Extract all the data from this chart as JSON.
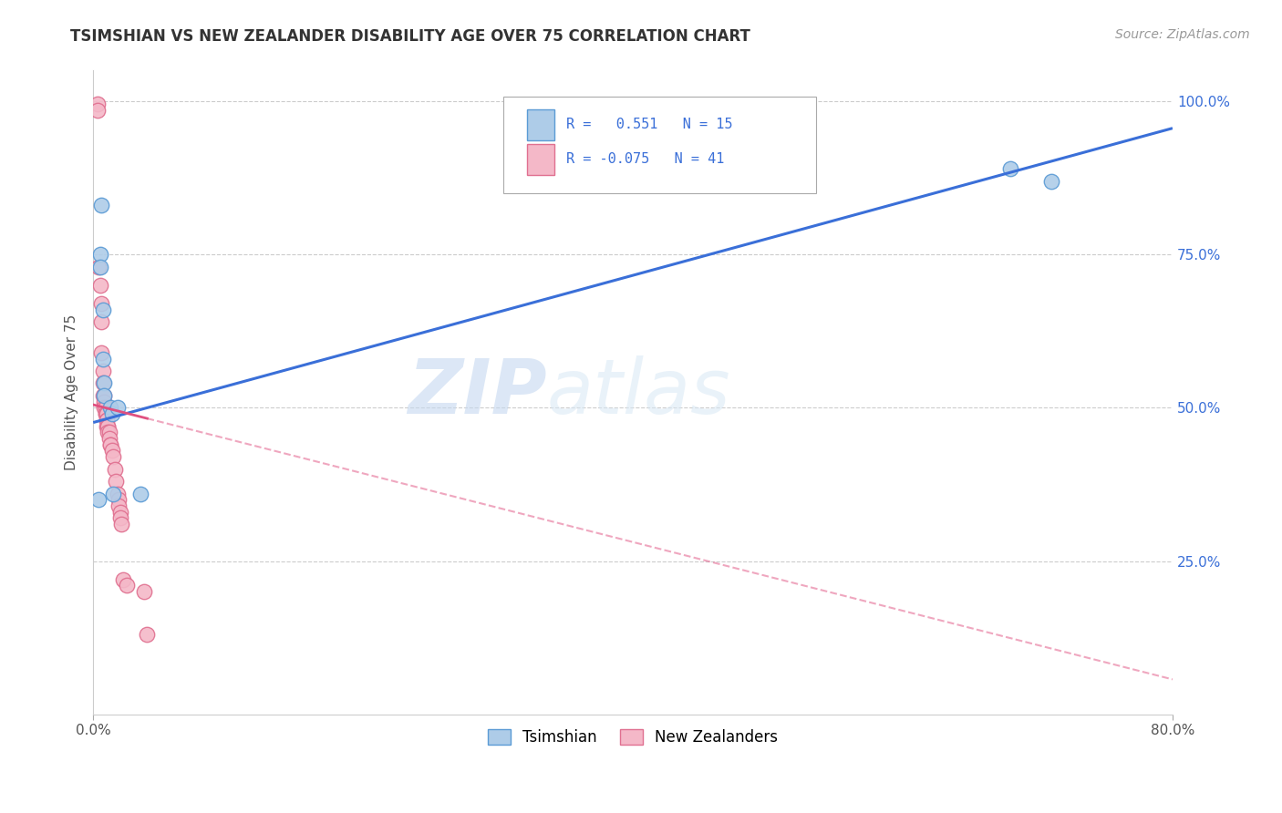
{
  "title": "TSIMSHIAN VS NEW ZEALANDER DISABILITY AGE OVER 75 CORRELATION CHART",
  "source": "Source: ZipAtlas.com",
  "ylabel": "Disability Age Over 75",
  "x_min": 0.0,
  "x_max": 0.8,
  "y_min": 0.0,
  "y_max": 1.05,
  "tsimshian_color": "#aecce8",
  "tsimshian_edge": "#5b9bd5",
  "nz_color": "#f4b8c8",
  "nz_edge": "#e07090",
  "trend_blue": "#3a6fd8",
  "trend_pink": "#e05080",
  "R_tsimshian": 0.551,
  "N_tsimshian": 15,
  "R_nz": -0.075,
  "N_nz": 41,
  "tsimshian_x": [
    0.004,
    0.005,
    0.005,
    0.006,
    0.007,
    0.007,
    0.008,
    0.008,
    0.013,
    0.014,
    0.015,
    0.018,
    0.035,
    0.68,
    0.71
  ],
  "tsimshian_y": [
    0.35,
    0.75,
    0.73,
    0.83,
    0.66,
    0.58,
    0.54,
    0.52,
    0.5,
    0.49,
    0.36,
    0.5,
    0.36,
    0.89,
    0.87
  ],
  "nz_x": [
    0.003,
    0.003,
    0.004,
    0.005,
    0.006,
    0.006,
    0.006,
    0.007,
    0.007,
    0.007,
    0.008,
    0.008,
    0.008,
    0.009,
    0.009,
    0.009,
    0.01,
    0.01,
    0.01,
    0.01,
    0.011,
    0.011,
    0.011,
    0.012,
    0.012,
    0.013,
    0.013,
    0.014,
    0.015,
    0.016,
    0.017,
    0.018,
    0.019,
    0.019,
    0.02,
    0.02,
    0.021,
    0.022,
    0.025,
    0.038,
    0.04
  ],
  "nz_y": [
    0.995,
    0.985,
    0.73,
    0.7,
    0.67,
    0.64,
    0.59,
    0.56,
    0.54,
    0.52,
    0.52,
    0.51,
    0.5,
    0.5,
    0.49,
    0.49,
    0.49,
    0.48,
    0.48,
    0.47,
    0.47,
    0.47,
    0.46,
    0.46,
    0.45,
    0.44,
    0.44,
    0.43,
    0.42,
    0.4,
    0.38,
    0.36,
    0.35,
    0.34,
    0.33,
    0.32,
    0.31,
    0.22,
    0.21,
    0.2,
    0.13
  ],
  "watermark_zip": "ZIP",
  "watermark_atlas": "atlas",
  "legend_label_tsimshian": "Tsimshian",
  "legend_label_nz": "New Zealanders",
  "background_color": "#ffffff",
  "grid_color": "#cccccc",
  "trend_blue_intercept": 0.476,
  "trend_blue_slope": 0.6,
  "trend_pink_intercept": 0.505,
  "trend_pink_slope": -0.56,
  "trend_pink_solid_end": 0.04
}
